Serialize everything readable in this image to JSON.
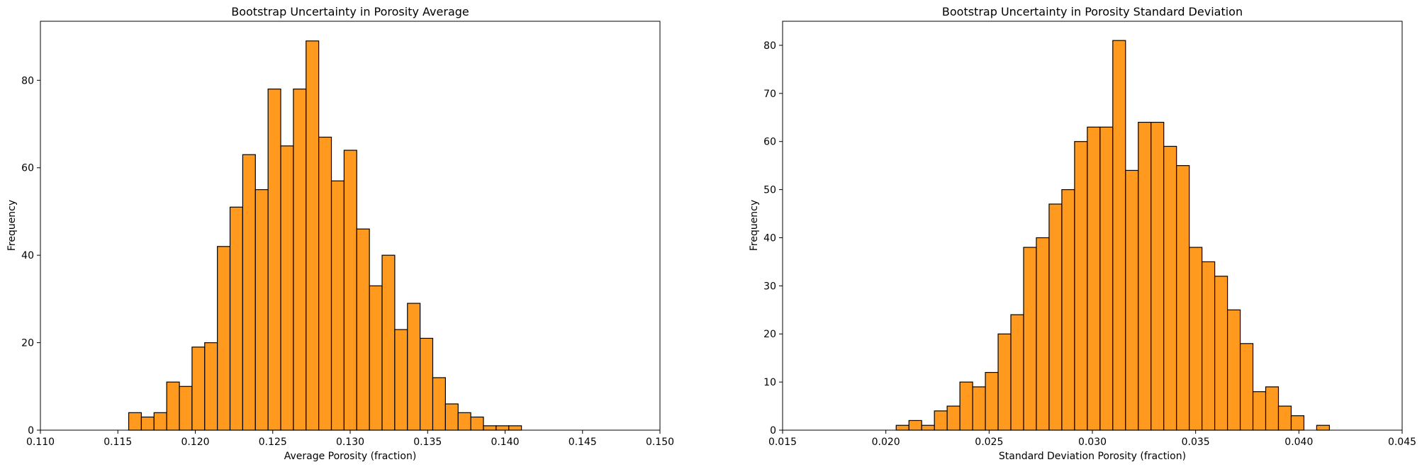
{
  "chart_data": [
    {
      "type": "bar",
      "title": "Bootstrap Uncertainty in Porosity Average",
      "xlabel": "Average Porosity (fraction)",
      "ylabel": "Frequency",
      "xlim": [
        0.11,
        0.15
      ],
      "ylim": [
        0,
        93.5
      ],
      "xticks": [
        "0.110",
        "0.115",
        "0.120",
        "0.125",
        "0.130",
        "0.135",
        "0.140",
        "0.145",
        "0.150"
      ],
      "yticks": [
        "0",
        "20",
        "40",
        "60",
        "80"
      ],
      "bar_color": "#ff9a1f",
      "bin_start": 0.1157,
      "bin_width": 0.000818,
      "counts": [
        4,
        3,
        4,
        11,
        10,
        19,
        20,
        42,
        51,
        63,
        55,
        78,
        65,
        78,
        89,
        67,
        57,
        64,
        46,
        33,
        40,
        23,
        29,
        21,
        12,
        6,
        4,
        3,
        1,
        1,
        1
      ]
    },
    {
      "type": "bar",
      "title": "Bootstrap Uncertainty in Porosity Standard Deviation",
      "xlabel": "Standard Deviation Porosity (fraction)",
      "ylabel": "Frequency",
      "xlim": [
        0.015,
        0.045
      ],
      "ylim": [
        0,
        85
      ],
      "xticks": [
        "0.015",
        "0.020",
        "0.025",
        "0.030",
        "0.035",
        "0.040",
        "0.045"
      ],
      "yticks": [
        "0",
        "10",
        "20",
        "30",
        "40",
        "50",
        "60",
        "70",
        "80"
      ],
      "bar_color": "#ff9a1f",
      "bin_start": 0.0205,
      "bin_width": 0.000617,
      "counts": [
        1,
        2,
        1,
        4,
        5,
        10,
        9,
        12,
        20,
        24,
        38,
        40,
        47,
        50,
        60,
        63,
        63,
        81,
        54,
        64,
        64,
        59,
        55,
        38,
        35,
        32,
        25,
        18,
        8,
        9,
        5,
        3,
        0,
        1
      ]
    }
  ]
}
